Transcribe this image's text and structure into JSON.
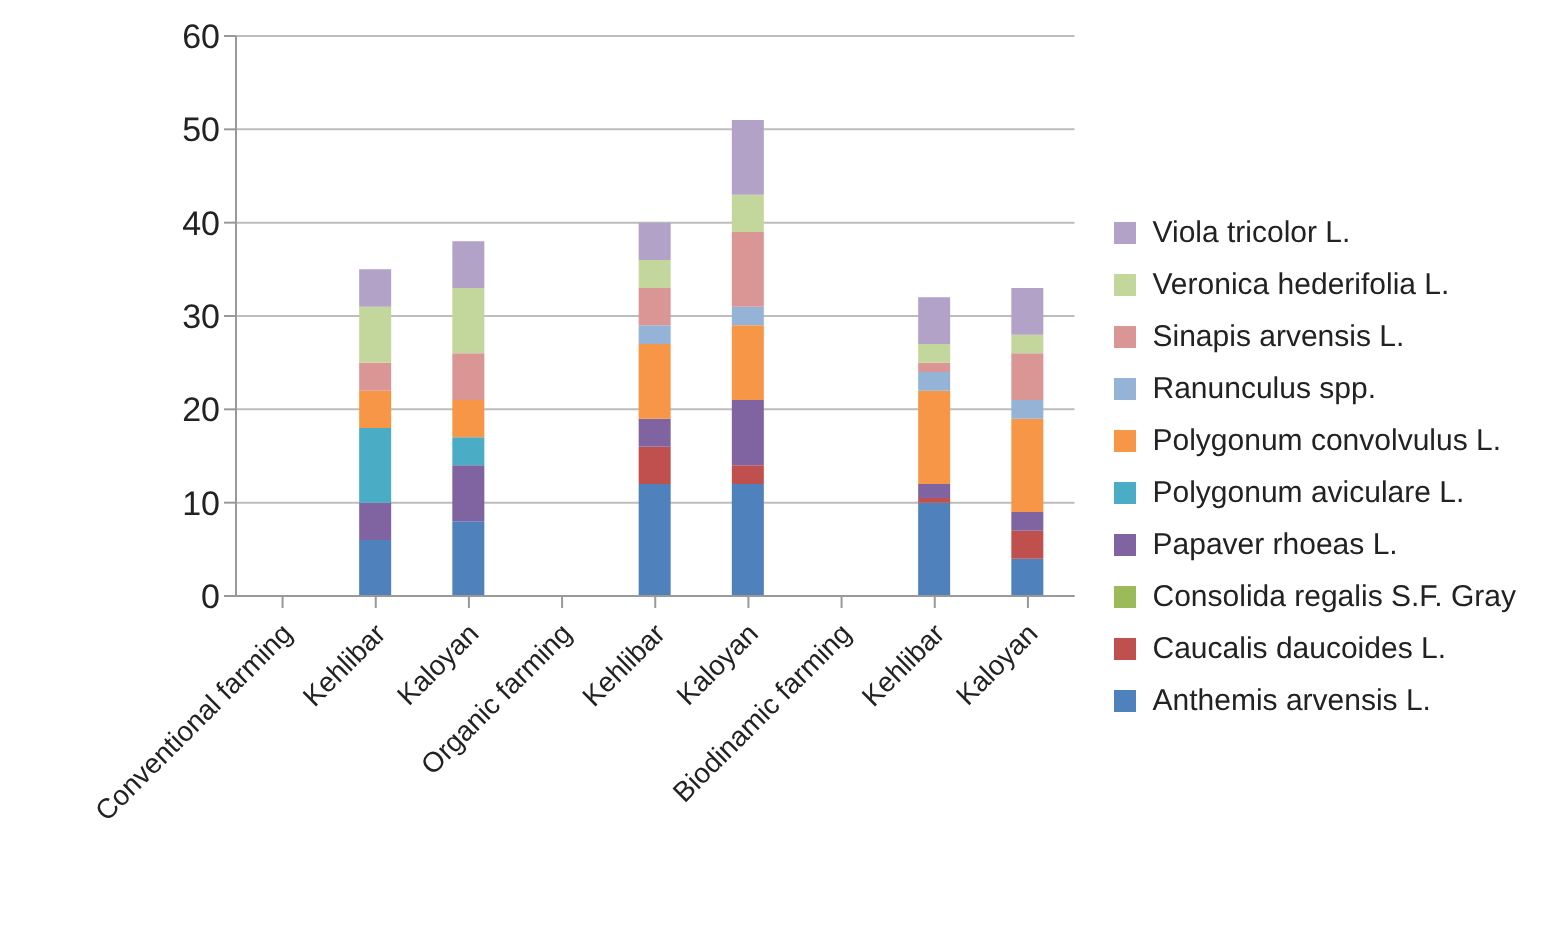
{
  "chart_data": {
    "type": "bar",
    "stacked": true,
    "categories": [
      "Conventional farming",
      "Kehlibar",
      "Kaloyan",
      "Organic farming",
      "Kehlibar",
      "Kaloyan",
      "Biodinamic farming",
      "Kehlibar",
      "Kaloyan"
    ],
    "series": [
      {
        "name": "Anthemis arvensis L.",
        "color": "#4f81bd",
        "values": [
          null,
          6,
          8,
          null,
          12,
          12,
          null,
          10,
          4
        ]
      },
      {
        "name": "Caucalis daucoides L.",
        "color": "#c0504d",
        "values": [
          null,
          0,
          0,
          null,
          4,
          2,
          null,
          0.5,
          3
        ]
      },
      {
        "name": "Consolida regalis S.F. Gray",
        "color": "#9bbb59",
        "values": [
          null,
          0,
          0,
          null,
          0,
          0,
          null,
          0,
          0
        ]
      },
      {
        "name": "Papaver rhoeas L.",
        "color": "#8064a2",
        "values": [
          null,
          4,
          6,
          null,
          3,
          7,
          null,
          1.5,
          2
        ]
      },
      {
        "name": "Polygonum aviculare  L.",
        "color": "#4bacc6",
        "values": [
          null,
          8,
          3,
          null,
          0,
          0,
          null,
          0,
          0
        ]
      },
      {
        "name": "Polygonum convolvulus L.",
        "color": "#f79646",
        "values": [
          null,
          4,
          4,
          null,
          8,
          8,
          null,
          10,
          10
        ]
      },
      {
        "name": "Ranunculus spp.",
        "color": "#95b3d7",
        "values": [
          null,
          0,
          0,
          null,
          2,
          2,
          null,
          2,
          2
        ]
      },
      {
        "name": "Sinapis arvensis L.",
        "color": "#d99694",
        "values": [
          null,
          3,
          5,
          null,
          4,
          8,
          null,
          1,
          5
        ]
      },
      {
        "name": "Veronica hederifolia L.",
        "color": "#c3d69b",
        "values": [
          null,
          6,
          7,
          null,
          3,
          4,
          null,
          2,
          2
        ]
      },
      {
        "name": "Viola tricolor L.",
        "color": "#b3a2c7",
        "values": [
          null,
          4,
          5,
          null,
          4,
          8,
          null,
          5,
          5
        ]
      }
    ],
    "ylim": [
      0,
      60
    ],
    "yticks": [
      0,
      10,
      20,
      30,
      40,
      50,
      60
    ],
    "grid": "y",
    "legend": "right"
  }
}
